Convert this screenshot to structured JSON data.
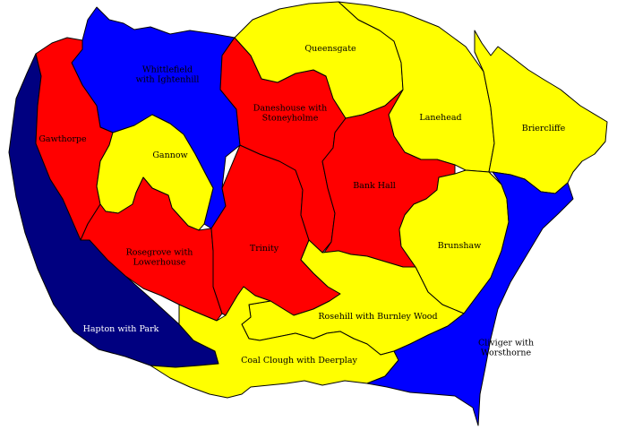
{
  "map": {
    "party_colors": {
      "red": "#ff0000",
      "yellow": "#ffff00",
      "blue": "#0000ff",
      "navy": "#000080"
    },
    "wards": [
      {
        "key": "whittlefield",
        "color": "blue",
        "label_lines": [
          "Whittlefield",
          "with Ightenhill"
        ]
      },
      {
        "key": "gawthorpe",
        "color": "red",
        "label_lines": [
          "Gawthorpe"
        ]
      },
      {
        "key": "gannow",
        "color": "yellow",
        "label_lines": [
          "Gannow"
        ]
      },
      {
        "key": "queensgate",
        "color": "yellow",
        "label_lines": [
          "Queensgate"
        ]
      },
      {
        "key": "daneshouse",
        "color": "red",
        "label_lines": [
          "Daneshouse with",
          "Stoneyholme"
        ]
      },
      {
        "key": "lanehead",
        "color": "yellow",
        "label_lines": [
          "Lanehead"
        ]
      },
      {
        "key": "briercliffe",
        "color": "yellow",
        "label_lines": [
          "Briercliffe"
        ]
      },
      {
        "key": "bank-hall",
        "color": "red",
        "label_lines": [
          "Bank Hall"
        ]
      },
      {
        "key": "trinity",
        "color": "red",
        "label_lines": [
          "Trinity"
        ]
      },
      {
        "key": "rosegrove",
        "color": "red",
        "label_lines": [
          "Rosegrove with",
          "Lowerhouse"
        ]
      },
      {
        "key": "brunshaw",
        "color": "yellow",
        "label_lines": [
          "Brunshaw"
        ]
      },
      {
        "key": "rosehill",
        "color": "yellow",
        "label_lines": [
          "Rosehill with Burnley Wood"
        ]
      },
      {
        "key": "hapton",
        "color": "navy",
        "label_lines": [
          "Hapton with Park"
        ]
      },
      {
        "key": "coal-clough",
        "color": "yellow",
        "label_lines": [
          "Coal Clough with Deerplay"
        ]
      },
      {
        "key": "cliviger",
        "color": "blue",
        "label_lines": [
          "Cliviger with",
          "Worsthorne"
        ]
      }
    ]
  }
}
